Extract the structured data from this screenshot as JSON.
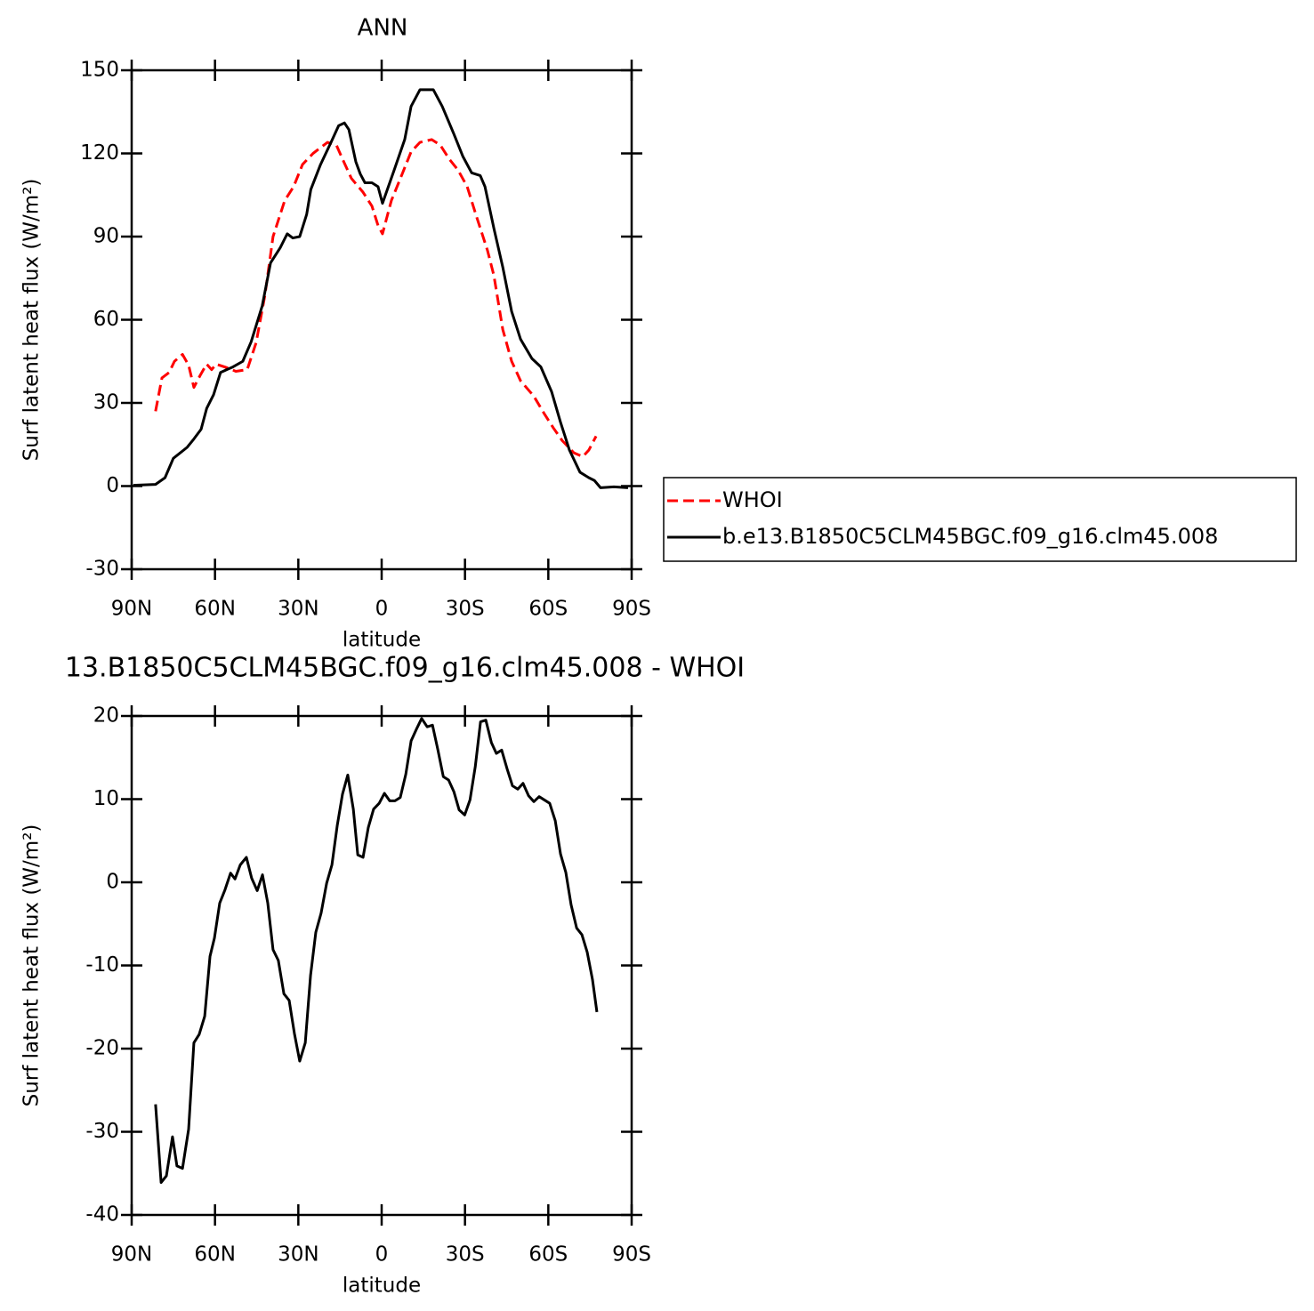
{
  "chart_data": [
    {
      "type": "line",
      "title": "ANN",
      "xlabel": "latitude",
      "ylabel": "Surf latent heat flux (W/m²)",
      "xlim": [
        90,
        -90
      ],
      "ylim": [
        -30,
        150
      ],
      "xticks": [
        {
          "value": 90,
          "label": "90N"
        },
        {
          "value": 60,
          "label": "60N"
        },
        {
          "value": 30,
          "label": "30N"
        },
        0,
        {
          "value": -30,
          "label": "30S"
        },
        {
          "value": -60,
          "label": "60S"
        },
        {
          "value": -90,
          "label": "90S"
        }
      ],
      "yticks": [
        -30,
        0,
        30,
        60,
        90,
        120,
        150
      ],
      "legend": "right",
      "series": [
        {
          "name": "WHOI",
          "color": "#ff0000",
          "dashed": true,
          "x": [
            81.4,
            79.1,
            76.5,
            74.6,
            71.7,
            69.5,
            67.6,
            65.3,
            63,
            61.2,
            59.6,
            55.7,
            52.5,
            48.4,
            45.2,
            42,
            39.1,
            34.9,
            31.7,
            28.5,
            24.7,
            19.5,
            16.3,
            14.1,
            10.9,
            6.7,
            3.5,
            1.3,
            -0.3,
            -3.5,
            -7.4,
            -10.6,
            -13.8,
            -18,
            -21.1,
            -24.3,
            -27.5,
            -30.8,
            -33.9,
            -38.1,
            -40.4,
            -43.6,
            -46.8,
            -50,
            -54.8,
            -58.6,
            -61.8,
            -65,
            -69.2,
            -72.4,
            -74.6,
            -77.2
          ],
          "values": [
            27,
            39,
            41,
            45,
            47.5,
            43.6,
            35.6,
            40,
            44,
            42,
            44,
            42.7,
            41.4,
            42,
            51.7,
            69,
            90,
            103,
            108,
            116,
            120,
            124,
            123,
            118,
            111,
            106,
            101,
            94,
            91,
            103,
            112.6,
            120.6,
            124,
            125,
            123,
            118,
            114,
            108,
            98,
            85,
            76,
            56.5,
            45,
            38,
            32.4,
            26,
            21,
            16.4,
            12,
            10.6,
            13,
            18
          ]
        },
        {
          "name": "b.e13.B1850C5CLM45BGC.f09_g16.clm45.008",
          "color": "#000000",
          "dashed": false,
          "x": [
            89.4,
            81.4,
            78,
            75,
            70,
            67.6,
            65,
            63,
            60.5,
            58,
            53.5,
            50,
            47,
            43,
            40,
            36.5,
            34,
            32,
            29.5,
            27,
            25.5,
            22,
            18,
            15.5,
            13.4,
            11.8,
            9.3,
            7.7,
            6,
            3.5,
            1.3,
            -0.3,
            -4.5,
            -8.3,
            -10.6,
            -13.8,
            -18.6,
            -21.8,
            -26,
            -29.2,
            -32.4,
            -35.5,
            -37.2,
            -40.4,
            -43.6,
            -46.8,
            -50,
            -54.1,
            -57.3,
            -61.2,
            -64.4,
            -67.6,
            -71.4,
            -74.6,
            -76.6,
            -78.8,
            -83.6,
            -88.7
          ],
          "values": [
            0.3,
            0.6,
            3,
            10,
            14,
            17,
            20.5,
            28,
            33,
            41,
            43,
            45,
            52,
            65,
            80.5,
            86,
            91,
            89.5,
            90,
            98,
            107,
            116,
            124.5,
            130,
            131,
            128.6,
            117,
            112.6,
            109.4,
            109.4,
            108,
            102,
            114,
            125,
            137,
            143,
            143,
            137,
            127,
            119,
            113,
            112,
            108,
            93,
            79,
            63,
            53,
            46,
            43,
            34,
            23,
            13,
            5,
            3,
            2,
            -0.6,
            -0.3,
            -0.6
          ]
        }
      ]
    },
    {
      "type": "line",
      "title": "13.B1850C5CLM45BGC.f09_g16.clm45.008 - WHOI",
      "xlabel": "latitude",
      "ylabel": "Surf latent heat flux (W/m²)",
      "xlim": [
        90,
        -90
      ],
      "ylim": [
        -40,
        20
      ],
      "xticks": [
        {
          "value": 90,
          "label": "90N"
        },
        {
          "value": 60,
          "label": "60N"
        },
        {
          "value": 30,
          "label": "30N"
        },
        0,
        {
          "value": -30,
          "label": "30S"
        },
        {
          "value": -60,
          "label": "60S"
        },
        {
          "value": -90,
          "label": "90S"
        }
      ],
      "yticks": [
        -40,
        -30,
        -20,
        -10,
        0,
        10,
        20
      ],
      "color": "#000000",
      "x": [
        81.4,
        79.4,
        77.5,
        75.3,
        73.7,
        71.7,
        69.5,
        67.6,
        65.7,
        63.7,
        61.8,
        60.2,
        58.3,
        56.4,
        54.4,
        52.8,
        50.9,
        48.7,
        46.8,
        44.8,
        42.9,
        41,
        39.1,
        37.2,
        35.2,
        33.3,
        31.4,
        29.5,
        27.5,
        25.6,
        23.7,
        21.8,
        19.8,
        17.9,
        16,
        14.1,
        12.2,
        10.2,
        8.6,
        6.7,
        4.8,
        2.9,
        0.9,
        -1,
        -2.9,
        -4.8,
        -6.7,
        -8.7,
        -10.6,
        -12.5,
        -14.4,
        -16.4,
        -18.3,
        -20.2,
        -22.2,
        -24.1,
        -26,
        -27.9,
        -29.9,
        -31.8,
        -33.7,
        -35.6,
        -37.5,
        -39.5,
        -41.3,
        -43.2,
        -45.2,
        -47.1,
        -49,
        -50.9,
        -52.9,
        -54.8,
        -56.7,
        -58.6,
        -60.5,
        -62.5,
        -64.4,
        -66.3,
        -68.2,
        -70.2,
        -72.1,
        -74,
        -75.9,
        -77.5
      ],
      "values": [
        -26.7,
        -36.1,
        -35.3,
        -30.6,
        -34.1,
        -34.4,
        -29.7,
        -19.3,
        -18.3,
        -16.1,
        -8.9,
        -6.7,
        -2.5,
        -0.9,
        1.1,
        0.4,
        2.1,
        3,
        0.5,
        -1,
        0.9,
        -2.5,
        -8.1,
        -9.4,
        -13.4,
        -14.2,
        -18.2,
        -21.5,
        -19.3,
        -11.2,
        -6,
        -3.7,
        -0.1,
        2.1,
        6.8,
        10.6,
        12.9,
        8.8,
        3.3,
        3,
        6.6,
        8.8,
        9.5,
        10.7,
        9.8,
        9.8,
        10.2,
        13,
        17,
        18.4,
        19.7,
        18.7,
        18.9,
        16,
        12.7,
        12.3,
        10.9,
        8.7,
        8.1,
        9.9,
        13.9,
        19.3,
        19.5,
        16.8,
        15.5,
        15.9,
        13.6,
        11.6,
        11.2,
        11.9,
        10.4,
        9.7,
        10.3,
        9.9,
        9.5,
        7.4,
        3.4,
        1.2,
        -2.7,
        -5.5,
        -6.3,
        -8.4,
        -11.7,
        -15.6
      ]
    }
  ]
}
